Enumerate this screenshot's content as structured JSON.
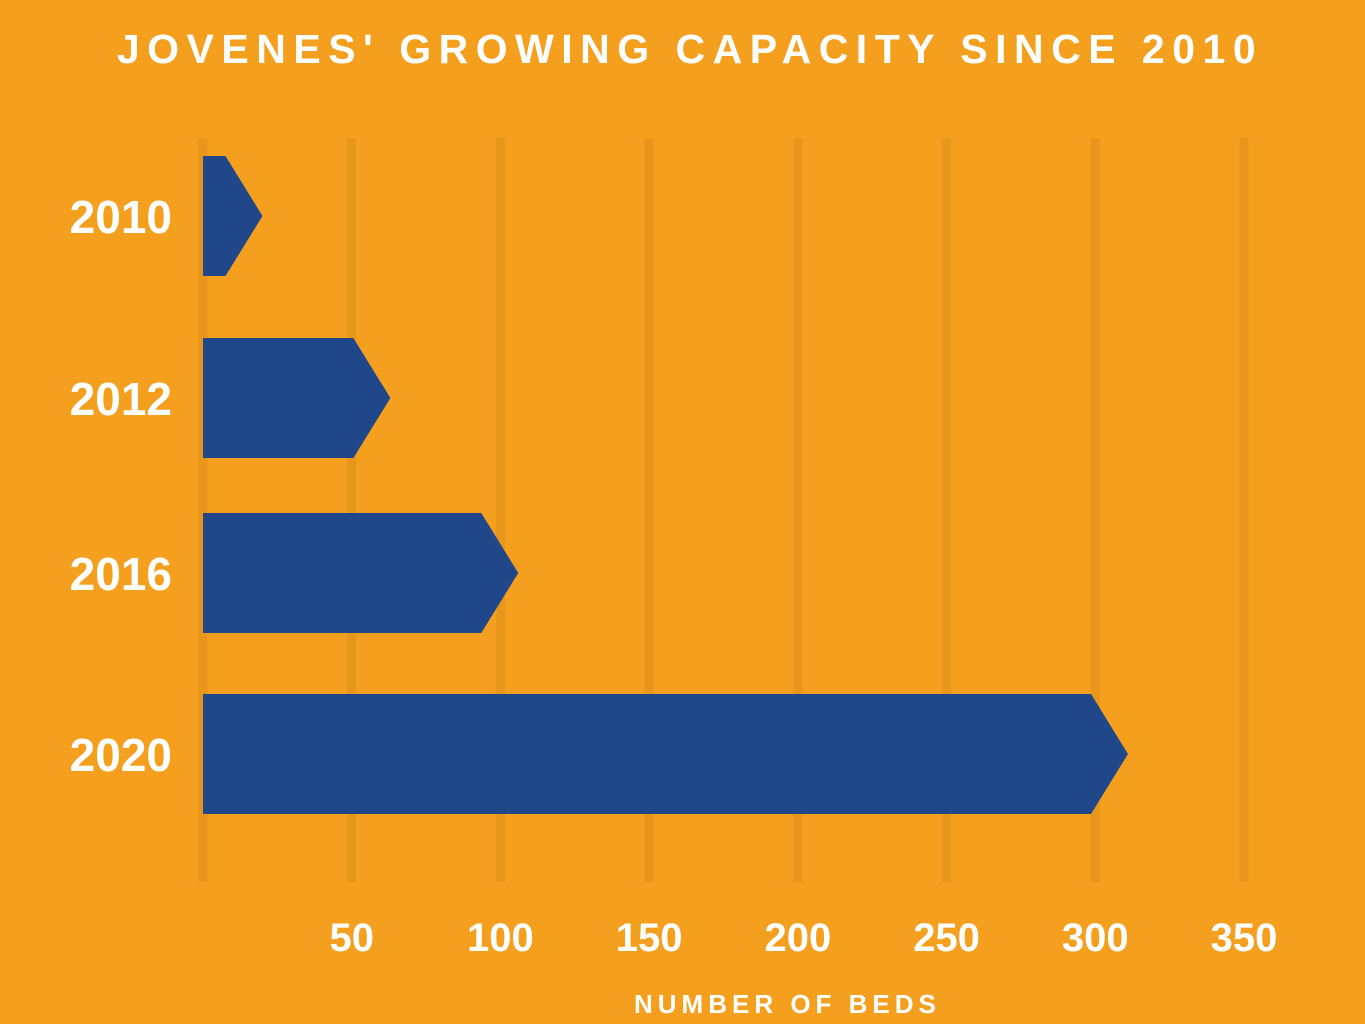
{
  "colors": {
    "background": "#F49F1E",
    "bar": "#1F4789",
    "gridline": "#E8951C",
    "text": "#FFFFFF"
  },
  "chart_data": {
    "type": "bar",
    "orientation": "horizontal",
    "title": "JOVENES' GROWING CAPACITY SINCE 2010",
    "xlabel": "NUMBER OF BEDS",
    "ylabel": "",
    "categories": [
      "2010",
      "2012",
      "2016",
      "2020"
    ],
    "values": [
      20,
      63,
      106,
      311
    ],
    "xticks": [
      "50",
      "100",
      "150",
      "200",
      "250",
      "300",
      "350"
    ],
    "xlim": [
      0,
      350
    ],
    "grid": true,
    "bar_style": "arrow"
  }
}
